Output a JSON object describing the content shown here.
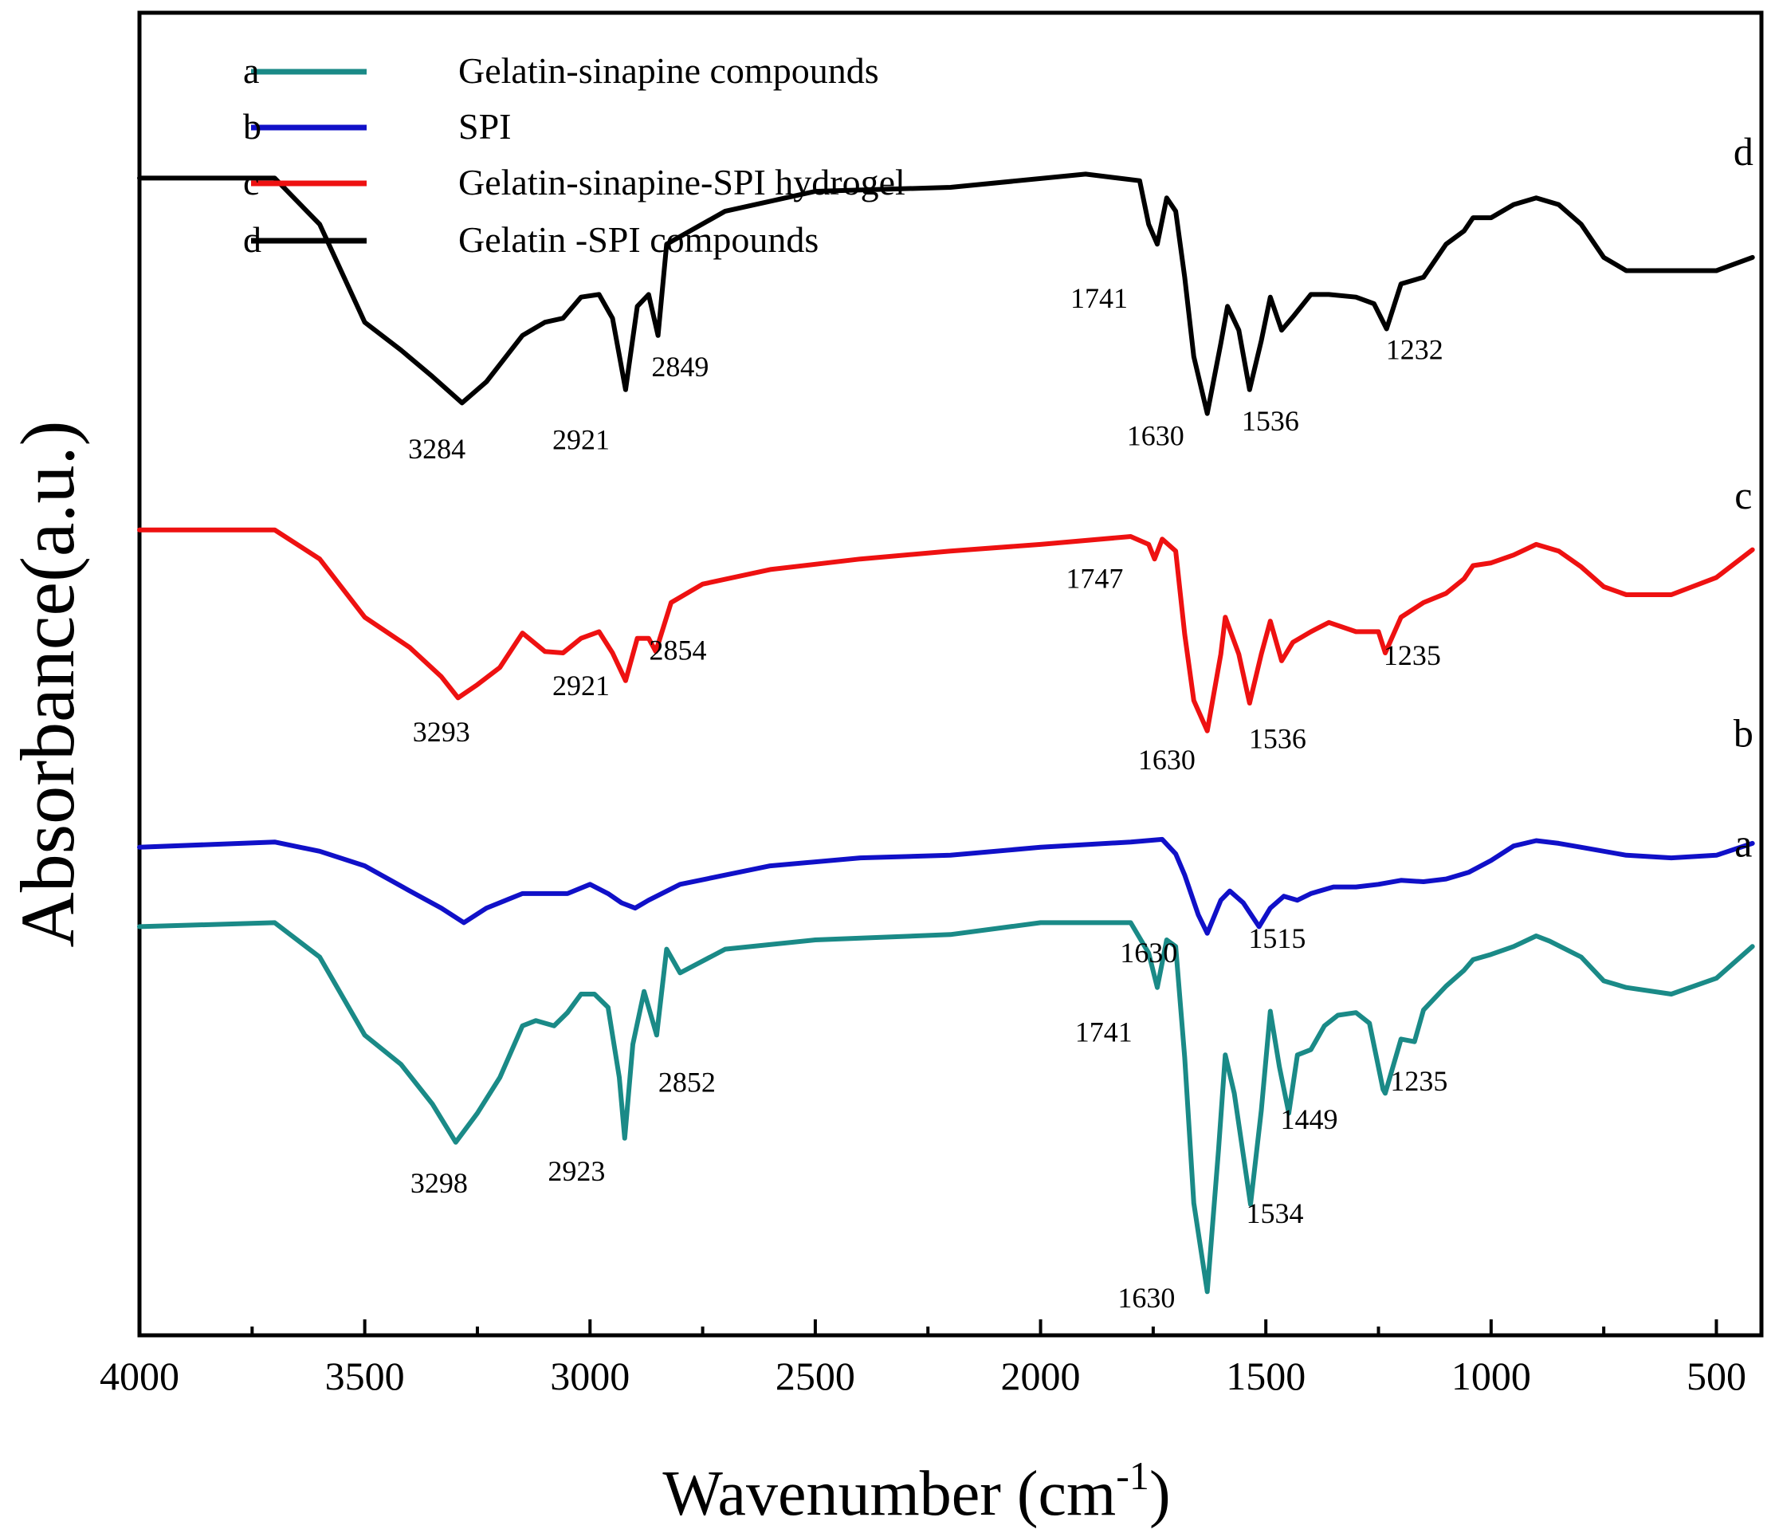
{
  "chart_data": {
    "type": "line",
    "title": "",
    "xlabel": "Wavenumber (cm",
    "xlabel_superscript": "-1",
    "xlabel_close": ")",
    "ylabel": "Absorbance(a.u.)",
    "xlim": [
      4000,
      400
    ],
    "x_inverted": true,
    "yticks_shown": false,
    "grid": false,
    "xticks": [
      "4000",
      "3500",
      "3000",
      "2500",
      "2000",
      "1500",
      "1000",
      "500"
    ],
    "xtick_values": [
      4000,
      3500,
      3000,
      2500,
      2000,
      1500,
      1000,
      500
    ],
    "ylim": [
      0,
      100
    ],
    "legend": {
      "placement": "top-left",
      "entries": [
        {
          "letter": "a",
          "label": "Gelatin-sinapine compounds",
          "color": "#1a8a87"
        },
        {
          "letter": "b",
          "label": "SPI",
          "color": "#1010c8"
        },
        {
          "letter": "c",
          "label": "Gelatin-sinapine-SPI hydrogel",
          "color": "#ee1111"
        },
        {
          "letter": "d",
          "label": "Gelatin -SPI compounds",
          "color": "#000000"
        }
      ]
    },
    "series": [
      {
        "name": "d",
        "label": "Gelatin -SPI compounds",
        "color": "#000000",
        "curve_letter": {
          "text": "d",
          "x": 440,
          "y": 88.5
        },
        "points": [
          [
            4000,
            87.5
          ],
          [
            3700,
            87.5
          ],
          [
            3600,
            84
          ],
          [
            3500,
            76.6
          ],
          [
            3420,
            74.5
          ],
          [
            3350,
            72.5
          ],
          [
            3284,
            70.5
          ],
          [
            3230,
            72.1
          ],
          [
            3150,
            75.6
          ],
          [
            3100,
            76.6
          ],
          [
            3060,
            76.9
          ],
          [
            3020,
            78.5
          ],
          [
            2980,
            78.7
          ],
          [
            2950,
            76.9
          ],
          [
            2921,
            71.5
          ],
          [
            2895,
            77.8
          ],
          [
            2870,
            78.7
          ],
          [
            2849,
            75.6
          ],
          [
            2830,
            82.5
          ],
          [
            2700,
            85
          ],
          [
            2500,
            86.5
          ],
          [
            2200,
            86.8
          ],
          [
            1900,
            87.8
          ],
          [
            1780,
            87.3
          ],
          [
            1760,
            84
          ],
          [
            1741,
            82.5
          ],
          [
            1720,
            86
          ],
          [
            1700,
            85
          ],
          [
            1680,
            80
          ],
          [
            1660,
            74
          ],
          [
            1630,
            69.7
          ],
          [
            1600,
            75
          ],
          [
            1585,
            77.8
          ],
          [
            1560,
            76
          ],
          [
            1536,
            71.5
          ],
          [
            1510,
            75.2
          ],
          [
            1490,
            78.5
          ],
          [
            1465,
            76
          ],
          [
            1440,
            77
          ],
          [
            1400,
            78.7
          ],
          [
            1360,
            78.7
          ],
          [
            1300,
            78.5
          ],
          [
            1260,
            78
          ],
          [
            1232,
            76.1
          ],
          [
            1200,
            79.5
          ],
          [
            1150,
            80
          ],
          [
            1100,
            82.5
          ],
          [
            1060,
            83.5
          ],
          [
            1040,
            84.5
          ],
          [
            1000,
            84.5
          ],
          [
            950,
            85.5
          ],
          [
            900,
            86
          ],
          [
            850,
            85.5
          ],
          [
            800,
            84
          ],
          [
            750,
            81.5
          ],
          [
            700,
            80.5
          ],
          [
            600,
            80.5
          ],
          [
            500,
            80.5
          ],
          [
            420,
            81.5
          ]
        ]
      },
      {
        "name": "c",
        "label": "Gelatin-sinapine-SPI hydrogel",
        "color": "#ee1111",
        "curve_letter": {
          "text": "c",
          "x": 440,
          "y": 62.5
        },
        "points": [
          [
            4000,
            60.9
          ],
          [
            3700,
            60.9
          ],
          [
            3600,
            58.7
          ],
          [
            3500,
            54.3
          ],
          [
            3400,
            52
          ],
          [
            3330,
            49.8
          ],
          [
            3293,
            48.2
          ],
          [
            3250,
            49.2
          ],
          [
            3200,
            50.5
          ],
          [
            3150,
            53.1
          ],
          [
            3100,
            51.7
          ],
          [
            3060,
            51.6
          ],
          [
            3020,
            52.7
          ],
          [
            2980,
            53.2
          ],
          [
            2950,
            51.6
          ],
          [
            2921,
            49.5
          ],
          [
            2895,
            52.7
          ],
          [
            2870,
            52.7
          ],
          [
            2854,
            51.7
          ],
          [
            2820,
            55.4
          ],
          [
            2750,
            56.8
          ],
          [
            2600,
            57.9
          ],
          [
            2400,
            58.7
          ],
          [
            2200,
            59.3
          ],
          [
            2000,
            59.8
          ],
          [
            1800,
            60.4
          ],
          [
            1760,
            59.8
          ],
          [
            1747,
            58.7
          ],
          [
            1730,
            60.2
          ],
          [
            1700,
            59.3
          ],
          [
            1680,
            53
          ],
          [
            1660,
            48
          ],
          [
            1630,
            45.7
          ],
          [
            1600,
            51.5
          ],
          [
            1590,
            54.3
          ],
          [
            1560,
            51.5
          ],
          [
            1536,
            47.8
          ],
          [
            1510,
            51.5
          ],
          [
            1490,
            54
          ],
          [
            1465,
            51
          ],
          [
            1440,
            52.4
          ],
          [
            1400,
            53.2
          ],
          [
            1360,
            53.9
          ],
          [
            1300,
            53.2
          ],
          [
            1250,
            53.2
          ],
          [
            1235,
            51.6
          ],
          [
            1200,
            54.3
          ],
          [
            1150,
            55.4
          ],
          [
            1100,
            56.1
          ],
          [
            1060,
            57.2
          ],
          [
            1040,
            58.2
          ],
          [
            1000,
            58.4
          ],
          [
            950,
            59
          ],
          [
            900,
            59.8
          ],
          [
            850,
            59.3
          ],
          [
            800,
            58.1
          ],
          [
            750,
            56.6
          ],
          [
            700,
            56
          ],
          [
            600,
            56
          ],
          [
            500,
            57.3
          ],
          [
            420,
            59.4
          ]
        ]
      },
      {
        "name": "b",
        "label": "SPI",
        "color": "#1010c8",
        "curve_letter": {
          "text": "b",
          "x": 440,
          "y": 44.5
        },
        "points": [
          [
            4000,
            36.9
          ],
          [
            3700,
            37.3
          ],
          [
            3600,
            36.6
          ],
          [
            3500,
            35.5
          ],
          [
            3400,
            33.6
          ],
          [
            3330,
            32.3
          ],
          [
            3280,
            31.2
          ],
          [
            3230,
            32.3
          ],
          [
            3150,
            33.4
          ],
          [
            3050,
            33.4
          ],
          [
            3000,
            34.1
          ],
          [
            2960,
            33.4
          ],
          [
            2930,
            32.7
          ],
          [
            2900,
            32.3
          ],
          [
            2870,
            32.9
          ],
          [
            2800,
            34.1
          ],
          [
            2600,
            35.5
          ],
          [
            2400,
            36.1
          ],
          [
            2200,
            36.3
          ],
          [
            2000,
            36.9
          ],
          [
            1800,
            37.3
          ],
          [
            1730,
            37.5
          ],
          [
            1700,
            36.4
          ],
          [
            1680,
            34.8
          ],
          [
            1650,
            31.8
          ],
          [
            1630,
            30.4
          ],
          [
            1600,
            32.9
          ],
          [
            1580,
            33.6
          ],
          [
            1550,
            32.7
          ],
          [
            1515,
            30.9
          ],
          [
            1490,
            32.3
          ],
          [
            1460,
            33.2
          ],
          [
            1430,
            32.9
          ],
          [
            1400,
            33.4
          ],
          [
            1350,
            33.9
          ],
          [
            1300,
            33.9
          ],
          [
            1250,
            34.1
          ],
          [
            1200,
            34.4
          ],
          [
            1150,
            34.3
          ],
          [
            1100,
            34.5
          ],
          [
            1050,
            35
          ],
          [
            1000,
            35.9
          ],
          [
            950,
            37
          ],
          [
            900,
            37.4
          ],
          [
            850,
            37.2
          ],
          [
            800,
            36.9
          ],
          [
            700,
            36.3
          ],
          [
            600,
            36.1
          ],
          [
            500,
            36.3
          ],
          [
            420,
            37.2
          ]
        ]
      },
      {
        "name": "a",
        "label": "Gelatin-sinapine compounds",
        "color": "#1a8a87",
        "curve_letter": {
          "text": "a",
          "x": 440,
          "y": 36.2
        },
        "points": [
          [
            4000,
            30.9
          ],
          [
            3700,
            31.2
          ],
          [
            3600,
            28.6
          ],
          [
            3500,
            22.7
          ],
          [
            3420,
            20.5
          ],
          [
            3350,
            17.5
          ],
          [
            3298,
            14.6
          ],
          [
            3250,
            16.8
          ],
          [
            3200,
            19.5
          ],
          [
            3150,
            23.4
          ],
          [
            3120,
            23.8
          ],
          [
            3080,
            23.4
          ],
          [
            3050,
            24.4
          ],
          [
            3020,
            25.8
          ],
          [
            2990,
            25.8
          ],
          [
            2960,
            24.8
          ],
          [
            2935,
            19.5
          ],
          [
            2923,
            14.9
          ],
          [
            2905,
            22
          ],
          [
            2880,
            26
          ],
          [
            2852,
            22.7
          ],
          [
            2830,
            29.2
          ],
          [
            2800,
            27.4
          ],
          [
            2700,
            29.2
          ],
          [
            2500,
            29.9
          ],
          [
            2200,
            30.3
          ],
          [
            2000,
            31.2
          ],
          [
            1800,
            31.2
          ],
          [
            1760,
            28.9
          ],
          [
            1741,
            26.3
          ],
          [
            1720,
            29.9
          ],
          [
            1700,
            29.4
          ],
          [
            1680,
            21
          ],
          [
            1660,
            10
          ],
          [
            1630,
            3.3
          ],
          [
            1605,
            14
          ],
          [
            1590,
            21.2
          ],
          [
            1570,
            18.3
          ],
          [
            1534,
            9.9
          ],
          [
            1510,
            17
          ],
          [
            1490,
            24.5
          ],
          [
            1470,
            20.3
          ],
          [
            1449,
            16.8
          ],
          [
            1430,
            21.2
          ],
          [
            1400,
            21.6
          ],
          [
            1370,
            23.4
          ],
          [
            1340,
            24.2
          ],
          [
            1300,
            24.4
          ],
          [
            1270,
            23.6
          ],
          [
            1240,
            18.6
          ],
          [
            1235,
            18.3
          ],
          [
            1200,
            22.4
          ],
          [
            1170,
            22.2
          ],
          [
            1150,
            24.6
          ],
          [
            1100,
            26.4
          ],
          [
            1060,
            27.6
          ],
          [
            1040,
            28.4
          ],
          [
            1000,
            28.8
          ],
          [
            950,
            29.4
          ],
          [
            900,
            30.2
          ],
          [
            870,
            29.8
          ],
          [
            800,
            28.6
          ],
          [
            750,
            26.8
          ],
          [
            700,
            26.3
          ],
          [
            600,
            25.8
          ],
          [
            500,
            27
          ],
          [
            420,
            29.4
          ]
        ]
      }
    ],
    "annotations": [
      {
        "text": "1741",
        "x": 1870,
        "y": 77.7
      },
      {
        "text": "2849",
        "x": 2800,
        "y": 72.5
      },
      {
        "text": "2921",
        "x": 3020,
        "y": 67
      },
      {
        "text": "3284",
        "x": 3340,
        "y": 66.3
      },
      {
        "text": "1630",
        "x": 1745,
        "y": 67.3
      },
      {
        "text": "1536",
        "x": 1490,
        "y": 68.4,
        "small": true
      },
      {
        "text": "1232",
        "x": 1170,
        "y": 73.8
      },
      {
        "text": "1747",
        "x": 1880,
        "y": 56.5
      },
      {
        "text": "2854",
        "x": 2805,
        "y": 51.1
      },
      {
        "text": "2921",
        "x": 3020,
        "y": 48.4
      },
      {
        "text": "3293",
        "x": 3330,
        "y": 44.9
      },
      {
        "text": "1235",
        "x": 1175,
        "y": 50.7
      },
      {
        "text": "1630",
        "x": 1720,
        "y": 42.8
      },
      {
        "text": "1536",
        "x": 1474,
        "y": 44.4
      },
      {
        "text": "1630",
        "x": 1760,
        "y": 28.2
      },
      {
        "text": "1515",
        "x": 1475,
        "y": 29.3
      },
      {
        "text": "1741",
        "x": 1860,
        "y": 22.2
      },
      {
        "text": "2852",
        "x": 2785,
        "y": 18.4
      },
      {
        "text": "3298",
        "x": 3335,
        "y": 10.8
      },
      {
        "text": "2923",
        "x": 3030,
        "y": 11.7
      },
      {
        "text": "1449",
        "x": 1404,
        "y": 15.6
      },
      {
        "text": "1235",
        "x": 1160,
        "y": 18.5
      },
      {
        "text": "1534",
        "x": 1480,
        "y": 8.5
      },
      {
        "text": "1630",
        "x": 1765,
        "y": 2.1
      }
    ]
  }
}
